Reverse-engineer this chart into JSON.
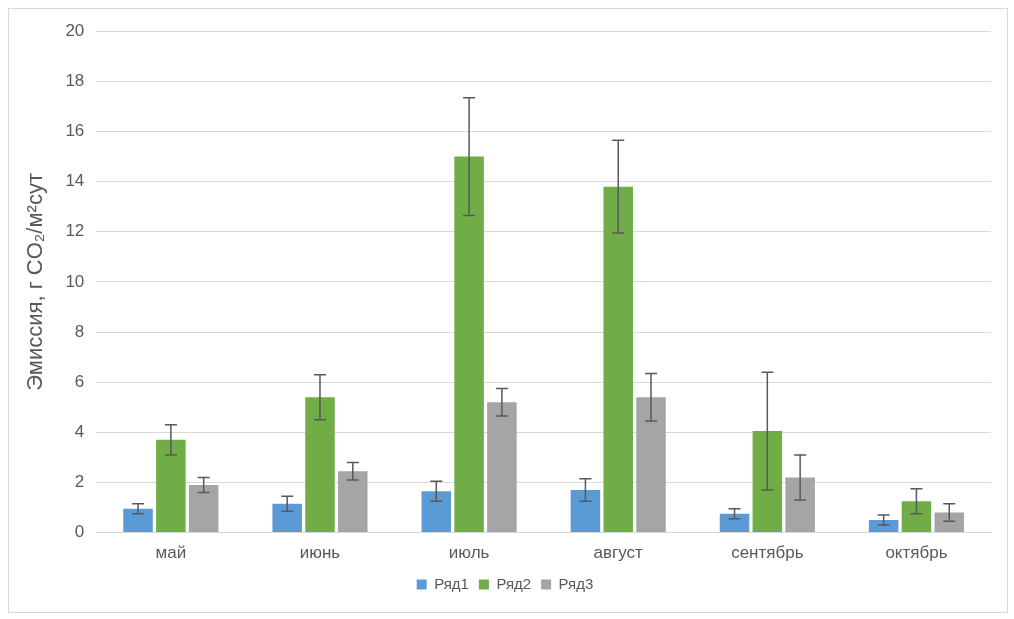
{
  "chart_data": {
    "type": "bar",
    "ylabel": "Эмиссия, г CO₂/м²сут",
    "categories": [
      "май",
      "июнь",
      "июль",
      "август",
      "сентябрь",
      "октябрь"
    ],
    "series": [
      {
        "name": "Ряд1",
        "color": "#5b9bd5",
        "values": [
          0.95,
          1.15,
          1.65,
          1.7,
          0.75,
          0.5
        ],
        "errors": [
          0.2,
          0.3,
          0.4,
          0.45,
          0.2,
          0.2
        ]
      },
      {
        "name": "Ряд2",
        "color": "#70ad47",
        "values": [
          3.7,
          5.4,
          15.0,
          13.8,
          4.05,
          1.25
        ],
        "errors": [
          0.6,
          0.9,
          2.35,
          1.85,
          2.35,
          0.5
        ]
      },
      {
        "name": "Ряд3",
        "color": "#a5a5a5",
        "values": [
          1.9,
          2.45,
          5.2,
          5.4,
          2.2,
          0.8
        ],
        "errors": [
          0.3,
          0.35,
          0.55,
          0.95,
          0.9,
          0.35
        ]
      }
    ],
    "ylim": [
      0,
      20
    ],
    "yticks": [
      0,
      2,
      4,
      6,
      8,
      10,
      12,
      14,
      16,
      18,
      20
    ],
    "grid": "y",
    "legend": "bottom"
  }
}
